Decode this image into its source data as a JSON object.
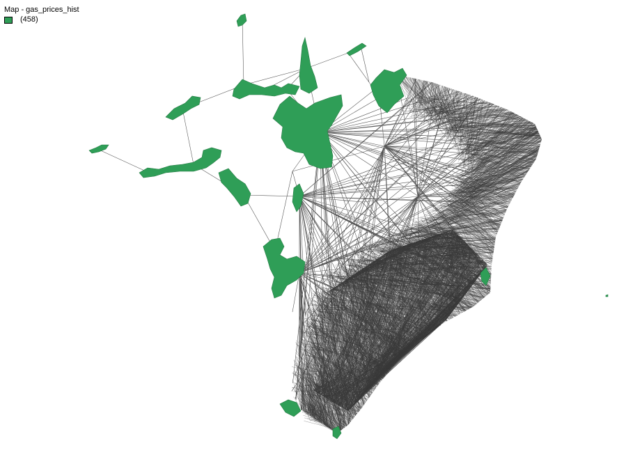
{
  "window": {
    "title": "Map - gas_prices_hist"
  },
  "legend": {
    "count_label": "(458)",
    "fill_color": "#2f9e57"
  },
  "map": {
    "fill_color": "#2f9e57",
    "edge_color": "#3a3a3a",
    "background": "#ffffff"
  }
}
